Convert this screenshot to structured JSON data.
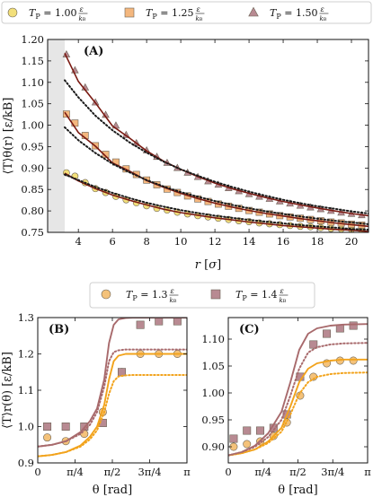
{
  "colors": {
    "p100": "#f2df7a",
    "p125": "#f4b77e",
    "p150": "#b88a92",
    "line_red": "#7a1a12",
    "fit_dark": "#1a1a1a",
    "dots_dark": "#1a1a1a",
    "p13": "#f4c27a",
    "p14": "#b88a92",
    "curve13": "#f2a31c",
    "curve14": "#a86a6c",
    "shade": "#e6e6e6"
  },
  "legend_top": {
    "items": [
      {
        "sym": "T",
        "sub": "P",
        "value": "= 1.00",
        "num": "ε",
        "den": "k",
        "den_sub": "B",
        "marker": "circle",
        "color_key": "p100"
      },
      {
        "sym": "T",
        "sub": "P",
        "value": "= 1.25",
        "num": "ε",
        "den": "k",
        "den_sub": "B",
        "marker": "square",
        "color_key": "p125"
      },
      {
        "sym": "T",
        "sub": "P",
        "value": "= 1.50",
        "num": "ε",
        "den": "k",
        "den_sub": "B",
        "marker": "triangle",
        "color_key": "p150"
      }
    ]
  },
  "legend_mid": {
    "items": [
      {
        "sym": "T",
        "sub": "P",
        "value": "= 1.3",
        "num": "ε",
        "den": "k",
        "den_sub": "B",
        "marker": "circle",
        "color_key": "p13"
      },
      {
        "sym": "T",
        "sub": "P",
        "value": "= 1.4",
        "num": "ε",
        "den": "k",
        "den_sub": "B",
        "marker": "square",
        "color_key": "p14"
      }
    ]
  },
  "chart_data": [
    {
      "panel": "(A)",
      "type": "scatter",
      "xlabel": "r [σ]",
      "ylabel": "⟨T⟩θ(r) [ε/kB]",
      "xlim": [
        2.2,
        21
      ],
      "ylim": [
        0.75,
        1.2
      ],
      "xticks": [
        4,
        6,
        8,
        10,
        12,
        14,
        16,
        18,
        20
      ],
      "xtick_labels": [
        "4",
        "6",
        "8",
        "10",
        "12",
        "14",
        "16",
        "18",
        "20"
      ],
      "yticks": [
        0.75,
        0.8,
        0.85,
        0.9,
        0.95,
        1.0,
        1.05,
        1.1,
        1.15,
        1.2
      ],
      "ytick_labels": [
        "0.75",
        "0.80",
        "0.85",
        "0.90",
        "0.95",
        "1.00",
        "1.05",
        "1.10",
        "1.15",
        "1.20"
      ],
      "shaded_x": [
        2.2,
        3.2
      ],
      "series": [
        {
          "marker": "circle",
          "color_key": "p100",
          "x": [
            3.3,
            3.8,
            4.4,
            5.0,
            5.6,
            6.2,
            6.8,
            7.4,
            8.0,
            8.6,
            9.2,
            9.8,
            10.4,
            11.0,
            11.6,
            12.2,
            12.8,
            13.4,
            14.0,
            14.6,
            15.2,
            15.8,
            16.4,
            17.0,
            17.6,
            18.2,
            18.8,
            19.4,
            20.0,
            20.6
          ],
          "y": [
            0.889,
            0.881,
            0.866,
            0.852,
            0.843,
            0.834,
            0.826,
            0.819,
            0.812,
            0.806,
            0.802,
            0.797,
            0.793,
            0.789,
            0.786,
            0.783,
            0.78,
            0.777,
            0.775,
            0.772,
            0.77,
            0.768,
            0.766,
            0.764,
            0.763,
            0.761,
            0.759,
            0.758,
            0.757,
            0.755
          ]
        },
        {
          "marker": "square",
          "color_key": "p125",
          "x": [
            3.3,
            3.8,
            4.4,
            5.0,
            5.6,
            6.2,
            6.8,
            7.4,
            8.0,
            8.6,
            9.2,
            9.8,
            10.4,
            11.0,
            11.6,
            12.2,
            12.8,
            13.4,
            14.0,
            14.6,
            15.2,
            15.8,
            16.4,
            17.0,
            17.6,
            18.2,
            18.8,
            19.4,
            20.0,
            20.6
          ],
          "y": [
            1.026,
            1.005,
            0.976,
            0.952,
            0.932,
            0.914,
            0.898,
            0.885,
            0.872,
            0.861,
            0.851,
            0.843,
            0.835,
            0.828,
            0.822,
            0.816,
            0.811,
            0.806,
            0.801,
            0.797,
            0.793,
            0.789,
            0.786,
            0.783,
            0.78,
            0.777,
            0.774,
            0.772,
            0.769,
            0.767
          ]
        },
        {
          "marker": "triangle",
          "color_key": "p150",
          "x": [
            3.3,
            3.8,
            4.4,
            5.0,
            5.6,
            6.2,
            6.8,
            7.4,
            8.0,
            8.6,
            9.2,
            9.8,
            10.4,
            11.0,
            11.6,
            12.2,
            12.8,
            13.4,
            14.0,
            14.6,
            15.2,
            15.8,
            16.4,
            17.0,
            17.6,
            18.2,
            18.8,
            19.4,
            20.0,
            20.6
          ],
          "y": [
            1.165,
            1.128,
            1.088,
            1.053,
            1.024,
            0.999,
            0.977,
            0.958,
            0.941,
            0.926,
            0.912,
            0.9,
            0.889,
            0.879,
            0.869,
            0.861,
            0.853,
            0.846,
            0.839,
            0.833,
            0.828,
            0.822,
            0.817,
            0.812,
            0.808,
            0.804,
            0.8,
            0.796,
            0.793,
            0.79
          ]
        }
      ],
      "curves": [
        {
          "style": "solid",
          "color_key": "line_red",
          "x": [
            3.2,
            4,
            5,
            6,
            7,
            8,
            9,
            10,
            11,
            12,
            13,
            14,
            15,
            16,
            17,
            18,
            19,
            20,
            21
          ],
          "y": [
            0.888,
            0.87,
            0.852,
            0.837,
            0.825,
            0.814,
            0.804,
            0.796,
            0.79,
            0.784,
            0.779,
            0.774,
            0.77,
            0.766,
            0.763,
            0.76,
            0.757,
            0.755,
            0.752
          ]
        },
        {
          "style": "solid",
          "color_key": "line_red",
          "x": [
            3.2,
            4,
            5,
            6,
            7,
            8,
            9,
            10,
            11,
            12,
            13,
            14,
            15,
            16,
            17,
            18,
            19,
            20,
            21
          ],
          "y": [
            1.03,
            0.983,
            0.951,
            0.912,
            0.893,
            0.871,
            0.855,
            0.841,
            0.829,
            0.818,
            0.809,
            0.801,
            0.794,
            0.788,
            0.782,
            0.777,
            0.772,
            0.768,
            0.764
          ]
        },
        {
          "style": "solid",
          "color_key": "line_red",
          "x": [
            3.2,
            4,
            5,
            6,
            7,
            8,
            9,
            10,
            11,
            12,
            13,
            14,
            15,
            16,
            17,
            18,
            19,
            20,
            21
          ],
          "y": [
            1.168,
            1.102,
            1.052,
            0.998,
            0.97,
            0.94,
            0.916,
            0.897,
            0.88,
            0.865,
            0.852,
            0.841,
            0.831,
            0.822,
            0.814,
            0.807,
            0.8,
            0.794,
            0.789
          ]
        },
        {
          "style": "dotted",
          "color_key": "dots_dark",
          "x": [
            3.2,
            4,
            5,
            6,
            7,
            8,
            9,
            10,
            11,
            12,
            13,
            14,
            15,
            16,
            17,
            18,
            19,
            20,
            21
          ],
          "y": [
            0.885,
            0.872,
            0.856,
            0.842,
            0.83,
            0.819,
            0.81,
            0.802,
            0.795,
            0.789,
            0.784,
            0.779,
            0.775,
            0.771,
            0.767,
            0.764,
            0.761,
            0.758,
            0.756
          ]
        },
        {
          "style": "dotted",
          "color_key": "dots_dark",
          "x": [
            3.2,
            4,
            5,
            6,
            7,
            8,
            9,
            10,
            11,
            12,
            13,
            14,
            15,
            16,
            17,
            18,
            19,
            20,
            21
          ],
          "y": [
            0.995,
            0.965,
            0.935,
            0.91,
            0.89,
            0.872,
            0.857,
            0.844,
            0.833,
            0.823,
            0.814,
            0.806,
            0.799,
            0.793,
            0.787,
            0.782,
            0.777,
            0.773,
            0.769
          ]
        },
        {
          "style": "dotted",
          "color_key": "dots_dark",
          "x": [
            3.2,
            4,
            5,
            6,
            7,
            8,
            9,
            10,
            11,
            12,
            13,
            14,
            15,
            16,
            17,
            18,
            19,
            20,
            21
          ],
          "y": [
            1.105,
            1.065,
            1.022,
            0.988,
            0.96,
            0.936,
            0.915,
            0.897,
            0.882,
            0.868,
            0.856,
            0.845,
            0.835,
            0.826,
            0.818,
            0.811,
            0.805,
            0.799,
            0.794
          ]
        }
      ]
    },
    {
      "panel": "(B)",
      "type": "scatter",
      "xlabel": "θ [rad]",
      "ylabel": "⟨T⟩r(θ) [ε/kB]",
      "xlim": [
        0,
        3.1416
      ],
      "ylim": [
        0.9,
        1.3
      ],
      "xticks": [
        0,
        0.7854,
        1.5708,
        2.3562,
        3.1416
      ],
      "xtick_labels": [
        "0",
        "π/4",
        "π/2",
        "3π/4",
        "π"
      ],
      "yticks": [
        0.9,
        1.0,
        1.1,
        1.2,
        1.3
      ],
      "ytick_labels": [
        "0.9",
        "1.0",
        "1.1",
        "1.2",
        "1.3"
      ],
      "series": [
        {
          "marker": "circle",
          "color_key": "p13",
          "x": [
            0.2,
            0.59,
            0.98,
            1.37,
            1.77,
            2.16,
            2.55,
            2.94
          ],
          "y": [
            0.97,
            0.96,
            0.98,
            1.04,
            1.15,
            1.2,
            1.2,
            1.2
          ]
        },
        {
          "marker": "square",
          "color_key": "p14",
          "x": [
            0.2,
            0.59,
            0.98,
            1.37,
            1.77,
            2.16,
            2.55,
            2.94
          ],
          "y": [
            1.0,
            1.0,
            1.0,
            1.01,
            1.15,
            1.28,
            1.29,
            1.29
          ]
        }
      ],
      "curves": [
        {
          "style": "solid",
          "color_key": "curve13",
          "x": [
            0,
            0.3,
            0.6,
            0.9,
            1.1,
            1.25,
            1.4,
            1.5,
            1.6,
            1.7,
            1.85,
            2.0,
            2.3,
            2.7,
            3.1416
          ],
          "y": [
            0.918,
            0.922,
            0.93,
            0.948,
            0.972,
            1.0,
            1.06,
            1.13,
            1.18,
            1.195,
            1.2,
            1.2,
            1.2,
            1.2,
            1.2
          ]
        },
        {
          "style": "solid",
          "color_key": "curve14",
          "x": [
            0,
            0.3,
            0.6,
            0.9,
            1.1,
            1.25,
            1.4,
            1.5,
            1.6,
            1.7,
            1.85,
            2.0,
            2.3,
            2.7,
            3.1416
          ],
          "y": [
            0.945,
            0.95,
            0.96,
            0.985,
            1.015,
            1.05,
            1.13,
            1.23,
            1.28,
            1.295,
            1.299,
            1.3,
            1.3,
            1.3,
            1.3
          ]
        },
        {
          "style": "dotted",
          "color_key": "curve13",
          "x": [
            0,
            0.3,
            0.6,
            0.9,
            1.1,
            1.25,
            1.4,
            1.5,
            1.6,
            1.7,
            1.85,
            2.0,
            2.3,
            2.7,
            3.1416
          ],
          "y": [
            0.918,
            0.922,
            0.93,
            0.945,
            0.965,
            0.99,
            1.04,
            1.09,
            1.125,
            1.138,
            1.141,
            1.142,
            1.142,
            1.142,
            1.142
          ]
        },
        {
          "style": "dotted",
          "color_key": "curve14",
          "x": [
            0,
            0.3,
            0.6,
            0.9,
            1.1,
            1.25,
            1.4,
            1.5,
            1.6,
            1.7,
            1.85,
            2.0,
            2.3,
            2.7,
            3.1416
          ],
          "y": [
            0.945,
            0.95,
            0.96,
            0.98,
            1.005,
            1.04,
            1.11,
            1.18,
            1.205,
            1.21,
            1.212,
            1.212,
            1.212,
            1.212,
            1.212
          ]
        }
      ]
    },
    {
      "panel": "(C)",
      "type": "scatter",
      "xlabel": "θ [rad]",
      "ylabel": "",
      "xlim": [
        0,
        3.1416
      ],
      "ylim": [
        0.87,
        1.14
      ],
      "xticks": [
        0,
        0.7854,
        1.5708,
        2.3562,
        3.1416
      ],
      "xtick_labels": [
        "0",
        "π/4",
        "π/2",
        "3π/4",
        "π"
      ],
      "yticks": [
        0.9,
        0.95,
        1.0,
        1.05,
        1.1
      ],
      "ytick_labels": [
        "0.90",
        "0.95",
        "1.00",
        "1.05",
        "1.10"
      ],
      "series": [
        {
          "marker": "circle",
          "color_key": "p13",
          "x": [
            0.12,
            0.42,
            0.72,
            1.02,
            1.32,
            1.62,
            1.92,
            2.22,
            2.52,
            2.82
          ],
          "y": [
            0.9,
            0.905,
            0.91,
            0.92,
            0.945,
            0.995,
            1.03,
            1.055,
            1.06,
            1.06
          ]
        },
        {
          "marker": "square",
          "color_key": "p14",
          "x": [
            0.12,
            0.42,
            0.72,
            1.02,
            1.32,
            1.62,
            1.92,
            2.22,
            2.52,
            2.82
          ],
          "y": [
            0.915,
            0.93,
            0.93,
            0.935,
            0.96,
            1.03,
            1.09,
            1.11,
            1.12,
            1.125
          ]
        }
      ],
      "curves": [
        {
          "style": "solid",
          "color_key": "curve13",
          "x": [
            0,
            0.3,
            0.6,
            0.9,
            1.2,
            1.4,
            1.6,
            1.8,
            2.0,
            2.3,
            2.6,
            3.1416
          ],
          "y": [
            0.884,
            0.888,
            0.895,
            0.91,
            0.935,
            0.975,
            1.02,
            1.045,
            1.055,
            1.06,
            1.062,
            1.062
          ]
        },
        {
          "style": "solid",
          "color_key": "curve14",
          "x": [
            0,
            0.3,
            0.6,
            0.9,
            1.2,
            1.4,
            1.6,
            1.8,
            2.0,
            2.3,
            2.6,
            3.1416
          ],
          "y": [
            0.884,
            0.89,
            0.902,
            0.925,
            0.965,
            1.02,
            1.08,
            1.11,
            1.12,
            1.125,
            1.127,
            1.128
          ]
        },
        {
          "style": "dotted",
          "color_key": "curve13",
          "x": [
            0,
            0.3,
            0.6,
            0.9,
            1.2,
            1.4,
            1.6,
            1.8,
            2.0,
            2.3,
            2.6,
            3.1416
          ],
          "y": [
            0.884,
            0.888,
            0.895,
            0.907,
            0.928,
            0.96,
            0.998,
            1.02,
            1.03,
            1.035,
            1.037,
            1.038
          ]
        },
        {
          "style": "dotted",
          "color_key": "curve14",
          "x": [
            0,
            0.3,
            0.6,
            0.9,
            1.2,
            1.4,
            1.6,
            1.8,
            2.0,
            2.3,
            2.6,
            3.1416
          ],
          "y": [
            0.884,
            0.89,
            0.9,
            0.918,
            0.95,
            0.995,
            1.045,
            1.075,
            1.085,
            1.09,
            1.092,
            1.093
          ]
        }
      ]
    }
  ]
}
